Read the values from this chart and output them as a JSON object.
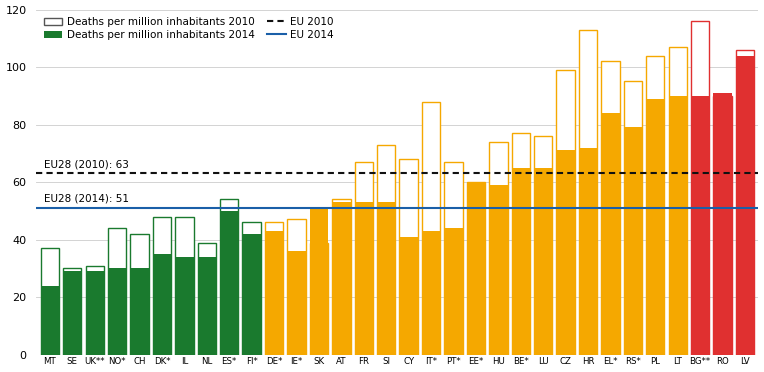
{
  "categories": [
    "MT",
    "SE",
    "UK**",
    "NO*",
    "CH",
    "DK*",
    "IL",
    "NL",
    "ES*",
    "FI*",
    "DE*",
    "IE*",
    "SK",
    "AT",
    "FR",
    "SI",
    "CY",
    "IT*",
    "PT*",
    "EE*",
    "HU",
    "BE*",
    "LU",
    "CZ",
    "HR",
    "EL*",
    "RS*",
    "PL",
    "LT",
    "BG**",
    "RO",
    "LV"
  ],
  "values_2010": [
    37,
    30,
    31,
    44,
    42,
    48,
    48,
    39,
    54,
    46,
    46,
    47,
    39,
    54,
    67,
    73,
    68,
    88,
    67,
    60,
    74,
    77,
    76,
    99,
    113,
    102,
    95,
    104,
    107,
    116,
    90,
    106
  ],
  "values_2014": [
    24,
    29,
    29,
    30,
    30,
    35,
    34,
    34,
    50,
    42,
    43,
    36,
    51,
    53,
    53,
    53,
    41,
    43,
    44,
    60,
    59,
    65,
    65,
    71,
    72,
    84,
    79,
    89,
    90,
    90,
    91,
    104
  ],
  "bar_colors_2010": [
    "green",
    "green",
    "green",
    "green",
    "green",
    "green",
    "green",
    "green",
    "green",
    "green",
    "orange",
    "orange",
    "orange",
    "orange",
    "orange",
    "orange",
    "orange",
    "orange",
    "orange",
    "orange",
    "orange",
    "orange",
    "orange",
    "orange",
    "orange",
    "orange",
    "orange",
    "orange",
    "orange",
    "red",
    "red",
    "red"
  ],
  "bar_colors_2014": [
    "#1a7a2e",
    "#1a7a2e",
    "#1a7a2e",
    "#1a7a2e",
    "#1a7a2e",
    "#1a7a2e",
    "#1a7a2e",
    "#1a7a2e",
    "#1a7a2e",
    "#1a7a2e",
    "#f5a800",
    "#f5a800",
    "#f5a800",
    "#f5a800",
    "#f5a800",
    "#f5a800",
    "#f5a800",
    "#f5a800",
    "#f5a800",
    "#f5a800",
    "#f5a800",
    "#f5a800",
    "#f5a800",
    "#f5a800",
    "#f5a800",
    "#f5a800",
    "#f5a800",
    "#f5a800",
    "#f5a800",
    "#e03030",
    "#e03030",
    "#e03030"
  ],
  "eu2010_value": 63,
  "eu2014_value": 51,
  "eu2010_label": "EU28 (2010): 63",
  "eu2014_label": "EU28 (2014): 51",
  "ymax": 120,
  "ymin": 0,
  "yticks": [
    0,
    20,
    40,
    60,
    80,
    100,
    120
  ],
  "legend_2010_label": "Deaths per million inhabitants 2010",
  "legend_2014_label": "Deaths per million inhabitants 2014",
  "legend_eu2010_label": "EU 2010",
  "legend_eu2014_label": "EU 2014",
  "green_color": "#1a7a2e",
  "orange_color": "#f5a800",
  "red_color": "#e03030",
  "eu2010_line_color": "#111111",
  "eu2014_line_color": "#1a5fa8",
  "background_color": "#ffffff"
}
